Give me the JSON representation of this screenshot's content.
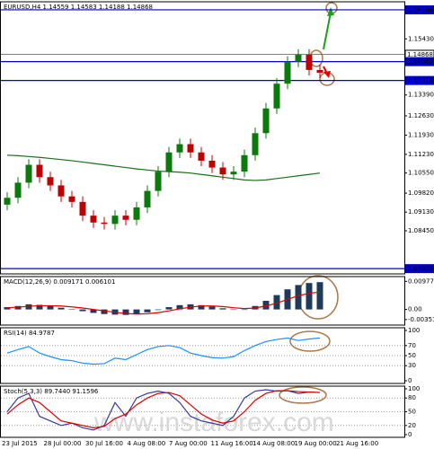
{
  "chart_data": [
    {
      "type": "candlestick",
      "title": "EURUSD,H4 1.14559 1.14583 1.14188 1.14868",
      "open": [
        1.094,
        1.0965,
        1.102,
        1.1085,
        1.104,
        1.101,
        1.097,
        1.095,
        1.09,
        1.0875,
        1.087,
        1.09,
        1.0885,
        1.093,
        1.099,
        1.106,
        1.113,
        1.116,
        1.113,
        1.11,
        1.1075,
        1.105,
        1.106,
        1.112,
        1.12,
        1.129,
        1.138,
        1.146,
        1.1485,
        1.143
      ],
      "high": [
        1.0985,
        1.104,
        1.1105,
        1.1105,
        1.106,
        1.103,
        1.099,
        1.097,
        1.092,
        1.0895,
        1.092,
        1.092,
        1.095,
        1.101,
        1.108,
        1.115,
        1.118,
        1.118,
        1.115,
        1.112,
        1.1095,
        1.108,
        1.114,
        1.122,
        1.131,
        1.14,
        1.148,
        1.1505,
        1.1505,
        1.145
      ],
      "low": [
        1.092,
        1.0945,
        1.1,
        1.102,
        1.099,
        1.095,
        1.093,
        1.088,
        1.0855,
        1.085,
        1.085,
        1.0865,
        1.0865,
        1.091,
        1.097,
        1.104,
        1.111,
        1.111,
        1.108,
        1.1055,
        1.103,
        1.103,
        1.104,
        1.11,
        1.118,
        1.127,
        1.136,
        1.144,
        1.141,
        1.14
      ],
      "close": [
        1.0965,
        1.102,
        1.1085,
        1.104,
        1.101,
        1.097,
        1.095,
        1.09,
        1.0875,
        1.087,
        1.09,
        1.0885,
        1.093,
        1.099,
        1.106,
        1.113,
        1.116,
        1.113,
        1.11,
        1.1075,
        1.105,
        1.106,
        1.112,
        1.12,
        1.129,
        1.138,
        1.146,
        1.1485,
        1.143,
        1.142
      ],
      "up_color": "#0a7a0a",
      "down_color": "#c00000",
      "series": [
        {
          "color": "#1a6e1a",
          "values": [
            1.112,
            1.1118,
            1.1115,
            1.1112,
            1.1108,
            1.1104,
            1.11,
            1.1095,
            1.109,
            1.1085,
            1.108,
            1.1075,
            1.107,
            1.1066,
            1.1062,
            1.106,
            1.1058,
            1.1055,
            1.105,
            1.1045,
            1.104,
            1.1035,
            1.103,
            1.1028,
            1.103,
            1.1035,
            1.104,
            1.1045,
            1.105,
            1.1055
          ]
        }
      ],
      "ylim": [
        1.0698,
        1.1668
      ],
      "yticks": [
        {
          "value": 1.1543,
          "label": "1.15430"
        },
        {
          "value": 1.1339,
          "label": "1.13390"
        },
        {
          "value": 1.1263,
          "label": "1.12630"
        },
        {
          "value": 1.1193,
          "label": "1.11930"
        },
        {
          "value": 1.1123,
          "label": "1.11230"
        },
        {
          "value": 1.1055,
          "label": "1.10550"
        },
        {
          "value": 1.0982,
          "label": "1.09820"
        },
        {
          "value": 1.0913,
          "label": "1.09130"
        },
        {
          "value": 1.0845,
          "label": "1.08450"
        }
      ],
      "levels": [
        {
          "value": 1.16486,
          "color": "#0000cc"
        },
        {
          "value": 1.14868,
          "color": "#ffffff"
        },
        {
          "value": 1.14602,
          "color": "#0000cc"
        },
        {
          "value": 1.13916,
          "color": "#0000cc"
        },
        {
          "value": 1.07073,
          "color": "#0000cc"
        }
      ]
    },
    {
      "type": "macd",
      "title": "MACD(12,26,9) 0.009171 0.006101",
      "color": "#1f3b5c",
      "values": [
        0.0008,
        0.0012,
        0.0018,
        0.0016,
        0.0012,
        0.0006,
        0.0001,
        -0.0006,
        -0.0012,
        -0.0016,
        -0.0018,
        -0.0019,
        -0.0016,
        -0.001,
        -0.0002,
        0.0008,
        0.0015,
        0.0018,
        0.0015,
        0.001,
        0.0004,
        -0.0001,
        0.0,
        0.0012,
        0.003,
        0.005,
        0.007,
        0.0085,
        0.0092,
        0.0095
      ],
      "series": [
        {
          "color": "#e00000",
          "values": [
            0.0006,
            0.0008,
            0.0011,
            0.0013,
            0.0013,
            0.0012,
            0.0009,
            0.0005,
            0.0,
            -0.0005,
            -0.001,
            -0.0014,
            -0.0016,
            -0.0015,
            -0.0011,
            -0.0005,
            0.0002,
            0.0008,
            0.0012,
            0.0012,
            0.001,
            0.0006,
            0.0003,
            0.0005,
            0.0012,
            0.0022,
            0.0035,
            0.0048,
            0.0056,
            0.0061
          ]
        }
      ],
      "ylim": [
        -0.0045,
        0.0105
      ],
      "yticks": [
        0.009775,
        {
          "value": 0,
          "label": "0.00"
        },
        {
          "value": -0.00351,
          "label": "-0.00351"
        }
      ]
    },
    {
      "type": "line",
      "title": "RSI(14) 84.9787",
      "series": [
        {
          "color": "#1e90ff",
          "values": [
            55,
            62,
            68,
            55,
            48,
            42,
            40,
            35,
            33,
            34,
            45,
            42,
            52,
            62,
            68,
            70,
            66,
            55,
            50,
            46,
            45,
            48,
            60,
            70,
            78,
            82,
            85,
            80,
            83,
            85
          ]
        }
      ],
      "ylim": [
        0,
        100
      ],
      "yticks": [
        100,
        70,
        50,
        30,
        0
      ]
    },
    {
      "type": "line",
      "title": "Stoch(5,3,3) 89.7440 91.1596",
      "series": [
        {
          "color": "#3a3a9a",
          "values": [
            50,
            80,
            90,
            40,
            30,
            20,
            25,
            15,
            10,
            20,
            70,
            40,
            80,
            90,
            95,
            90,
            70,
            40,
            30,
            25,
            20,
            40,
            80,
            95,
            98,
            95,
            96,
            90,
            93,
            92
          ]
        },
        {
          "color": "#e00000",
          "values": [
            45,
            65,
            80,
            70,
            50,
            30,
            25,
            20,
            15,
            18,
            35,
            45,
            65,
            80,
            90,
            92,
            85,
            65,
            45,
            32,
            25,
            30,
            50,
            75,
            90,
            96,
            96,
            94,
            93,
            92
          ]
        }
      ],
      "ylim": [
        0,
        100
      ],
      "yticks": [
        100,
        80,
        50,
        20,
        0
      ]
    }
  ],
  "time_axis": [
    "23 Jul 2015",
    "28 Jul 00:00",
    "30 Jul 16:00",
    "4 Aug 08:00",
    "7 Aug 00:00",
    "11 Aug 16:00",
    "14 Aug 08:00",
    "19 Aug 00:00",
    "21 Aug 16:00"
  ],
  "watermark": "www.instaforex.com"
}
